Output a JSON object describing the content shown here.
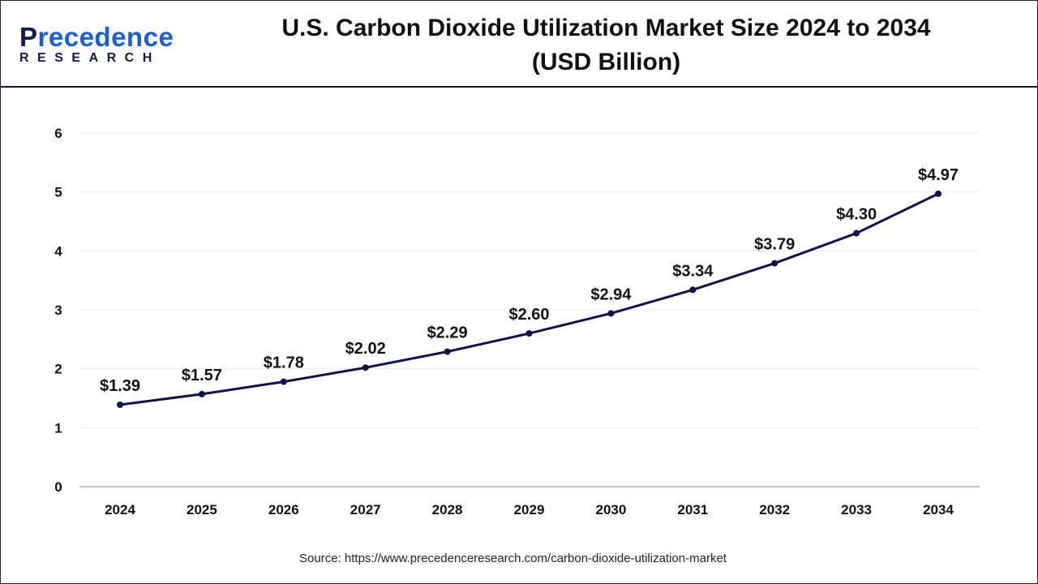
{
  "logo": {
    "line1": "Precedence",
    "line2": "RESEARCH"
  },
  "title_line1": "U.S. Carbon Dioxide Utilization Market Size 2024 to 2034",
  "title_line2": "(USD Billion)",
  "source": "Source: https://www.precedenceresearch.com/carbon-dioxide-utilization-market",
  "colors": {
    "line": "#0f1147",
    "grid": "#ebebeb",
    "axis": "#bfbfbf",
    "brand_blue": "#1a5fd6",
    "brand_navy": "#0f1a4a"
  },
  "chart_data": {
    "type": "line",
    "title": "U.S. Carbon Dioxide Utilization Market Size 2024 to 2034 (USD Billion)",
    "categories": [
      "2024",
      "2025",
      "2026",
      "2027",
      "2028",
      "2029",
      "2030",
      "2031",
      "2032",
      "2033",
      "2034"
    ],
    "values": [
      1.39,
      1.57,
      1.78,
      2.02,
      2.29,
      2.6,
      2.94,
      3.34,
      3.79,
      4.3,
      4.97
    ],
    "data_labels": [
      "$1.39",
      "$1.57",
      "$1.78",
      "$2.02",
      "$2.29",
      "$2.60",
      "$2.94",
      "$3.34",
      "$3.79",
      "$4.30",
      "$4.97"
    ],
    "yticks": [
      0,
      1,
      2,
      3,
      4,
      5,
      6
    ],
    "ylim": [
      0,
      6
    ],
    "grid": true,
    "legend": "none"
  }
}
